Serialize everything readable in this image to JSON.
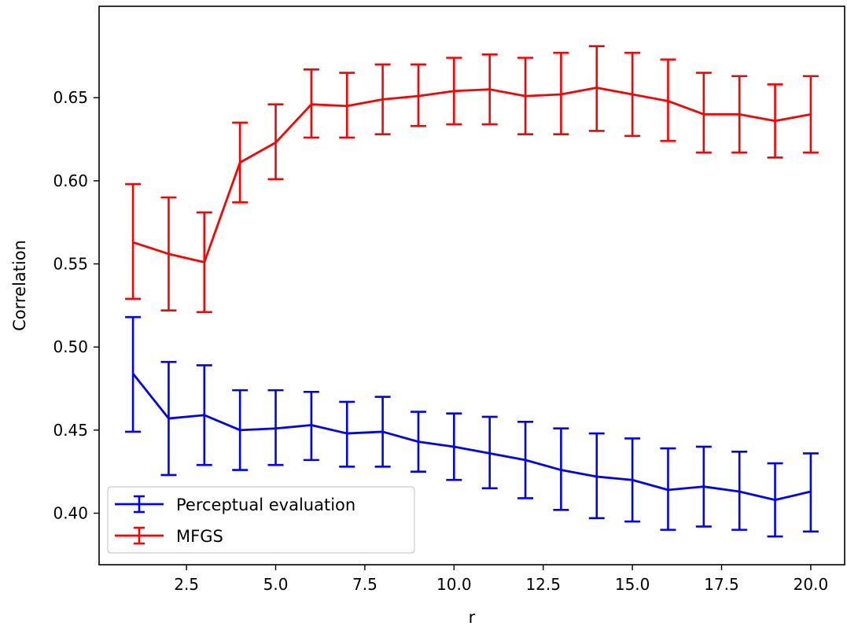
{
  "chart_data": {
    "type": "line",
    "title": "",
    "xlabel": "r",
    "ylabel": "Correlation",
    "xlim": [
      0.05,
      20.95
    ],
    "ylim": [
      0.369,
      0.705
    ],
    "xticks": [
      2.5,
      5.0,
      7.5,
      10.0,
      12.5,
      15.0,
      17.5,
      20.0
    ],
    "xtick_labels": [
      "2.5",
      "5.0",
      "7.5",
      "10.0",
      "12.5",
      "15.0",
      "17.5",
      "20.0"
    ],
    "yticks": [
      0.4,
      0.45,
      0.5,
      0.55,
      0.6,
      0.65
    ],
    "ytick_labels": [
      "0.40",
      "0.45",
      "0.50",
      "0.55",
      "0.60",
      "0.65"
    ],
    "grid": false,
    "legend": "lower-left",
    "x": [
      1,
      2,
      3,
      4,
      5,
      6,
      7,
      8,
      9,
      10,
      11,
      12,
      13,
      14,
      15,
      16,
      17,
      18,
      19,
      20
    ],
    "series": [
      {
        "name": "Perceptual evaluation",
        "color": "#0000ff",
        "values": [
          0.484,
          0.457,
          0.459,
          0.45,
          0.451,
          0.453,
          0.448,
          0.449,
          0.443,
          0.44,
          0.436,
          0.432,
          0.426,
          0.422,
          0.42,
          0.414,
          0.416,
          0.413,
          0.408,
          0.413
        ],
        "lower": [
          0.449,
          0.423,
          0.429,
          0.426,
          0.429,
          0.432,
          0.428,
          0.428,
          0.425,
          0.42,
          0.415,
          0.409,
          0.402,
          0.397,
          0.395,
          0.39,
          0.392,
          0.39,
          0.386,
          0.389
        ],
        "upper": [
          0.518,
          0.491,
          0.489,
          0.474,
          0.474,
          0.473,
          0.467,
          0.47,
          0.461,
          0.46,
          0.458,
          0.455,
          0.451,
          0.448,
          0.445,
          0.439,
          0.44,
          0.437,
          0.43,
          0.436
        ]
      },
      {
        "name": "MFGS",
        "color": "#ff0000",
        "values": [
          0.563,
          0.556,
          0.551,
          0.611,
          0.623,
          0.646,
          0.645,
          0.649,
          0.651,
          0.654,
          0.655,
          0.651,
          0.652,
          0.656,
          0.652,
          0.648,
          0.64,
          0.64,
          0.636,
          0.64
        ],
        "lower": [
          0.529,
          0.522,
          0.521,
          0.587,
          0.601,
          0.626,
          0.626,
          0.628,
          0.633,
          0.634,
          0.634,
          0.628,
          0.628,
          0.63,
          0.627,
          0.624,
          0.617,
          0.617,
          0.614,
          0.617
        ],
        "upper": [
          0.598,
          0.59,
          0.581,
          0.635,
          0.646,
          0.667,
          0.665,
          0.67,
          0.67,
          0.674,
          0.676,
          0.674,
          0.677,
          0.681,
          0.677,
          0.673,
          0.665,
          0.663,
          0.658,
          0.663
        ]
      }
    ]
  }
}
